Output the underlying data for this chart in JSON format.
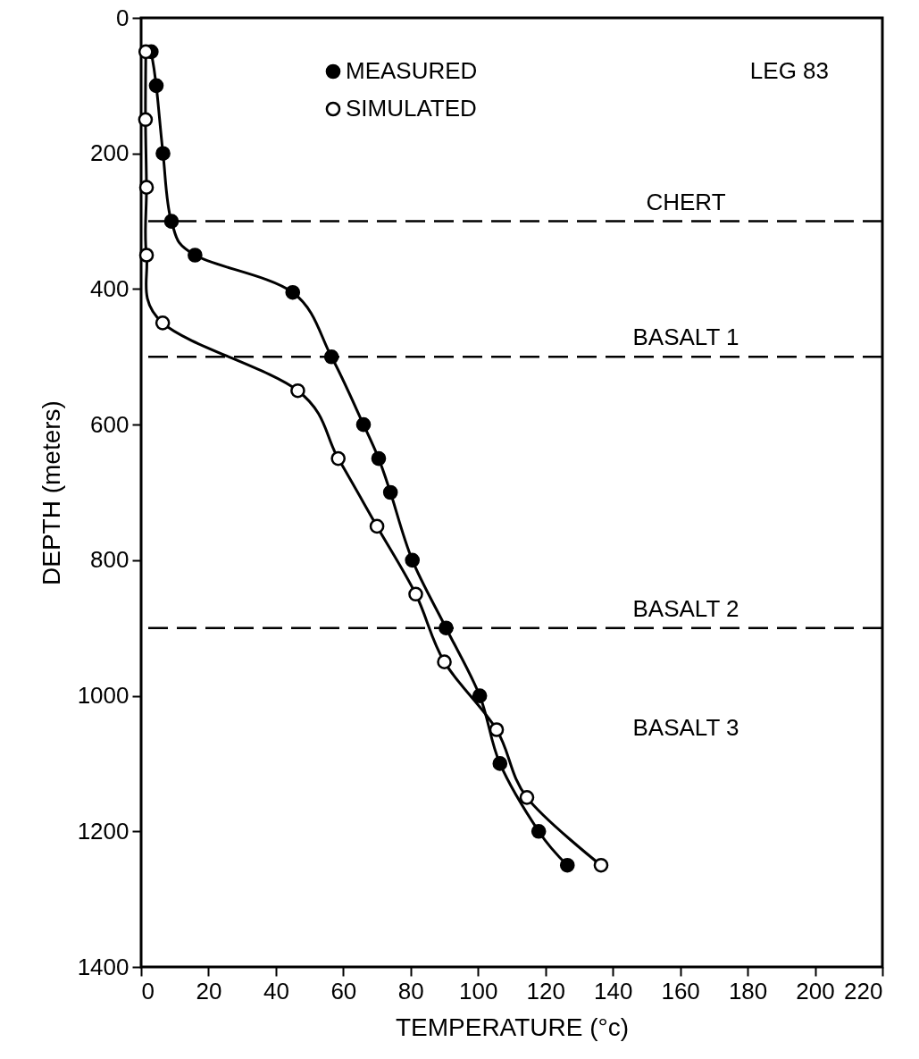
{
  "chart_data": {
    "type": "line",
    "annotations": [
      "LEG 83",
      "BASALT 3"
    ],
    "xlabel": "TEMPERATURE (°c)",
    "ylabel": "DEPTH (meters)",
    "series": [
      {
        "name": "MEASURED",
        "color": "#000000",
        "x": [
          3,
          4.5,
          6.5,
          9,
          16,
          45,
          56.5,
          66,
          70.5,
          74,
          80.5,
          90.5,
          100.5,
          106.5,
          118,
          126.5
        ],
        "values": [
          50,
          100,
          200,
          300,
          350,
          405,
          500,
          600,
          650,
          700,
          800,
          900,
          1000,
          1100,
          1200,
          1250
        ]
      },
      {
        "name": "SIMULATED",
        "color": "#000000",
        "x": [
          1.4,
          1.3,
          1.6,
          1.6,
          6.4,
          46.5,
          58.5,
          70,
          81.5,
          90,
          105.5,
          114.5,
          136.5
        ],
        "values": [
          50,
          150,
          250,
          350,
          450,
          550,
          650,
          750,
          850,
          950,
          1050,
          1150,
          1250
        ]
      }
    ],
    "xlim": [
      0,
      220
    ],
    "xticks": [
      0,
      20,
      40,
      60,
      80,
      100,
      120,
      140,
      160,
      180,
      200,
      220
    ],
    "ylim": [
      1400,
      0
    ],
    "yticks": [
      0,
      200,
      400,
      600,
      800,
      1000,
      1200,
      1400
    ],
    "ref_lines": [
      {
        "axis": "y",
        "value": 300,
        "label": "CHERT",
        "line_style": "dashed"
      },
      {
        "axis": "y",
        "value": 500,
        "label": "BASALT 1",
        "line_style": "dashed"
      },
      {
        "axis": "y",
        "value": 900,
        "label": "BASALT 2",
        "line_style": "dashed"
      }
    ],
    "marker": "circle",
    "legend": "top left",
    "grid": false
  }
}
